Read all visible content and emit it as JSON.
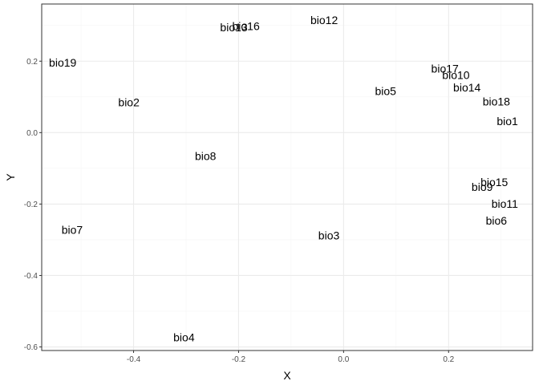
{
  "chart_data": {
    "type": "scatter",
    "xlabel": "X",
    "ylabel": "Y",
    "xlim": [
      -0.575,
      0.36
    ],
    "ylim": [
      -0.61,
      0.36
    ],
    "x_major_ticks": [
      -0.4,
      -0.2,
      0.0,
      0.2
    ],
    "x_tick_labels": [
      "-0.4",
      "-0.2",
      "0.0",
      "0.2"
    ],
    "x_minor_ticks": [
      -0.5,
      -0.3,
      -0.1,
      0.1,
      0.3
    ],
    "y_major_ticks": [
      -0.6,
      -0.4,
      -0.2,
      0.0,
      0.2
    ],
    "y_tick_labels": [
      "-0.6",
      "-0.4",
      "-0.2",
      "0.0",
      "0.2"
    ],
    "y_minor_ticks": [
      -0.5,
      -0.3,
      -0.1,
      0.1,
      0.3
    ],
    "grid": true,
    "theme": "bw",
    "colors": {
      "panel_border": "#333333",
      "grid_major": "#ebebeb",
      "grid_minor": "#f5f5f5",
      "text": "#000000",
      "tick_text": "#4d4d4d"
    },
    "points": [
      {
        "label": "bio1",
        "x": 0.312,
        "y": 0.032
      },
      {
        "label": "bio2",
        "x": -0.409,
        "y": 0.085
      },
      {
        "label": "bio3",
        "x": -0.028,
        "y": -0.288
      },
      {
        "label": "bio4",
        "x": -0.304,
        "y": -0.573
      },
      {
        "label": "bio5",
        "x": 0.08,
        "y": 0.116
      },
      {
        "label": "bio6",
        "x": 0.291,
        "y": -0.246
      },
      {
        "label": "bio7",
        "x": -0.517,
        "y": -0.272
      },
      {
        "label": "bio8",
        "x": -0.263,
        "y": -0.066
      },
      {
        "label": "bio9",
        "x": 0.264,
        "y": -0.152
      },
      {
        "label": "bio10",
        "x": 0.214,
        "y": 0.161
      },
      {
        "label": "bio11",
        "x": 0.307,
        "y": -0.199
      },
      {
        "label": "bio12",
        "x": -0.037,
        "y": 0.315
      },
      {
        "label": "bio13",
        "x": -0.209,
        "y": 0.295
      },
      {
        "label": "bio14",
        "x": 0.235,
        "y": 0.127
      },
      {
        "label": "bio15",
        "x": 0.287,
        "y": -0.139
      },
      {
        "label": "bio16",
        "x": -0.186,
        "y": 0.298
      },
      {
        "label": "bio17",
        "x": 0.193,
        "y": 0.179
      },
      {
        "label": "bio18",
        "x": 0.291,
        "y": 0.087
      },
      {
        "label": "bio19",
        "x": -0.535,
        "y": 0.196
      }
    ]
  }
}
